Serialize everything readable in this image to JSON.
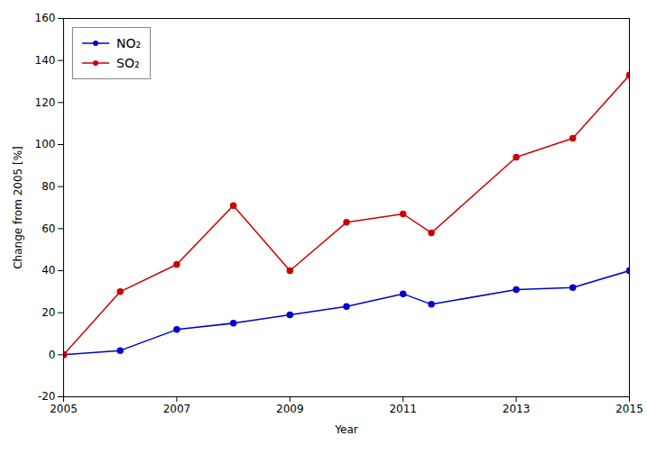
{
  "chart_data": {
    "type": "line",
    "x": [
      2005,
      2006,
      2007,
      2008,
      2009,
      2010,
      2011,
      2011.5,
      2013,
      2014,
      2015
    ],
    "series": [
      {
        "name": "NO₂",
        "color": "#0000cc",
        "values": [
          0,
          2,
          12,
          15,
          19,
          23,
          29,
          24,
          31,
          32,
          40
        ]
      },
      {
        "name": "SO₂",
        "color": "#cc0000",
        "values": [
          0,
          30,
          43,
          71,
          40,
          63,
          67,
          58,
          94,
          103,
          133
        ]
      }
    ],
    "xlabel": "Year",
    "ylabel": "Change from 2005 [%]",
    "xlim": [
      2005,
      2015
    ],
    "xticks": [
      2005,
      2007,
      2009,
      2011,
      2013,
      2015
    ],
    "ylim": [
      -20,
      160
    ],
    "yticks": [
      -20,
      0,
      20,
      40,
      60,
      80,
      100,
      120,
      140,
      160
    ],
    "marker": "circle",
    "legend": "upper left",
    "grid": false
  }
}
